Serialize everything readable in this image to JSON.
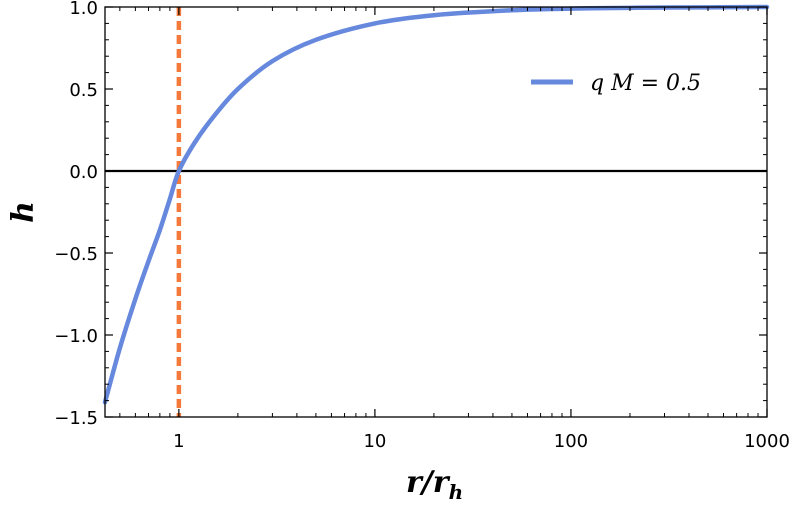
{
  "chart_data": {
    "type": "line",
    "title": "",
    "xlabel": "r/r",
    "xlabel_sub": "h",
    "ylabel": "h",
    "xscale": "log",
    "xlim": [
      0.42,
      1000
    ],
    "ylim": [
      -1.5,
      1.0
    ],
    "x_ticks": [
      1,
      10,
      100,
      1000
    ],
    "x_tick_labels": [
      "1",
      "10",
      "100",
      "1000"
    ],
    "y_ticks": [
      1.0,
      0.5,
      0.0,
      -0.5,
      -1.0,
      -1.5
    ],
    "y_tick_labels": [
      "1.0",
      "0.5",
      "0.0",
      "−0.5",
      "−1.0",
      "−1.5"
    ],
    "grid": false,
    "legend_position": "top-right",
    "series": [
      {
        "name": "q M = 0.5",
        "color": "#6688dd",
        "x": [
          0.42,
          0.5,
          0.6,
          0.7,
          0.8,
          0.9,
          1.0,
          1.2,
          1.5,
          2,
          3,
          5,
          10,
          20,
          50,
          100,
          200,
          500,
          1000
        ],
        "y": [
          -1.41,
          -1.08,
          -0.78,
          -0.55,
          -0.36,
          -0.17,
          0.0,
          0.17,
          0.33,
          0.5,
          0.67,
          0.8,
          0.9,
          0.95,
          0.98,
          0.99,
          0.995,
          0.998,
          1.0
        ]
      }
    ],
    "reference_lines": [
      {
        "orientation": "horizontal",
        "value": 0.0,
        "color": "#000000"
      },
      {
        "orientation": "vertical",
        "value": 1,
        "color": "#f4793a",
        "style": "dashed"
      }
    ]
  }
}
